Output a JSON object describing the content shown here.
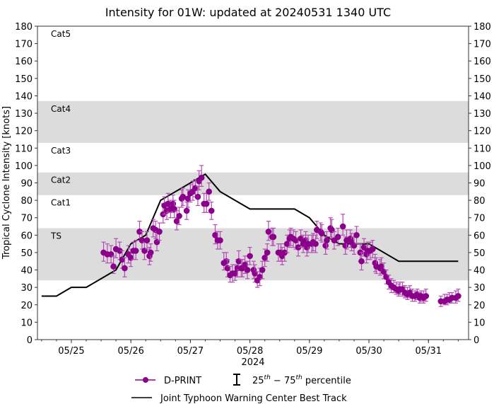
{
  "chart_data": {
    "type": "scatter",
    "title": "Intensity for 01W: updated at 20240531 1340 UTC",
    "ylabel": "Tropical Cyclone Intensity [knots]",
    "xlabel": "2024",
    "ylim": [
      0,
      180
    ],
    "xlim": [
      "2024-05-24T10:20",
      "2024-05-31T16:10"
    ],
    "yticks": [
      0,
      10,
      20,
      30,
      40,
      50,
      60,
      70,
      80,
      90,
      100,
      110,
      120,
      130,
      140,
      150,
      160,
      170,
      180
    ],
    "xticks": [
      {
        "date": "2024-05-25T00:00",
        "label": "05/25"
      },
      {
        "date": "2024-05-26T00:00",
        "label": "05/26"
      },
      {
        "date": "2024-05-27T00:00",
        "label": "05/27"
      },
      {
        "date": "2024-05-28T00:00",
        "label": "05/28"
      },
      {
        "date": "2024-05-29T00:00",
        "label": "05/29"
      },
      {
        "date": "2024-05-30T00:00",
        "label": "05/30"
      },
      {
        "date": "2024-05-31T00:00",
        "label": "05/31"
      }
    ],
    "grid": false,
    "bands": [
      {
        "label": "TS",
        "from": 34,
        "to": 64,
        "shaded": true
      },
      {
        "label": "Cat1",
        "from": 64,
        "to": 83,
        "shaded": false
      },
      {
        "label": "Cat2",
        "from": 83,
        "to": 96,
        "shaded": true
      },
      {
        "label": "Cat3",
        "from": 96,
        "to": 113,
        "shaded": false
      },
      {
        "label": "Cat4",
        "from": 113,
        "to": 137,
        "shaded": true
      },
      {
        "label": "Cat5",
        "from": 137,
        "to": 180,
        "shaded": false
      }
    ],
    "legend": {
      "placement": "bottom",
      "dprint": "D-PRINT",
      "percentile_pre": "25",
      "percentile_sup1": "th",
      "percentile_mid": " − 75",
      "percentile_sup2": "th",
      "percentile_post": " percentile",
      "besttrack": "Joint Typhoon Warning Center Best Track"
    },
    "colors": {
      "dprint": "#8b008b",
      "errorbar": "#b44bb4",
      "besttrack": "#000000",
      "band": "#dcdcdc"
    },
    "series": [
      {
        "name": "D-PRINT",
        "fields": [
          "time",
          "value",
          "p25",
          "p75"
        ],
        "points": [
          [
            "2024-05-25T13:00",
            50,
            45,
            56
          ],
          [
            "2024-05-25T14:30",
            49,
            44,
            55
          ],
          [
            "2024-05-25T16:00",
            49,
            44,
            54
          ],
          [
            "2024-05-25T17:00",
            42,
            38,
            48
          ],
          [
            "2024-05-25T18:00",
            52,
            47,
            58
          ],
          [
            "2024-05-25T19:30",
            51,
            46,
            56
          ],
          [
            "2024-05-25T20:30",
            46,
            41,
            51
          ],
          [
            "2024-05-25T21:30",
            41,
            36,
            47
          ],
          [
            "2024-05-25T23:00",
            49,
            44,
            54
          ],
          [
            "2024-05-26T00:00",
            47,
            42,
            52
          ],
          [
            "2024-05-26T01:00",
            51,
            46,
            56
          ],
          [
            "2024-05-26T02:00",
            51,
            46,
            57
          ],
          [
            "2024-05-26T03:30",
            62,
            57,
            68
          ],
          [
            "2024-05-26T04:30",
            57,
            52,
            62
          ],
          [
            "2024-05-26T05:30",
            51,
            46,
            56
          ],
          [
            "2024-05-26T06:30",
            57,
            52,
            62
          ],
          [
            "2024-05-26T07:30",
            48,
            43,
            53
          ],
          [
            "2024-05-26T08:00",
            50,
            45,
            55
          ],
          [
            "2024-05-26T09:00",
            64,
            59,
            69
          ],
          [
            "2024-05-26T10:00",
            63,
            58,
            68
          ],
          [
            "2024-05-26T10:30",
            56,
            51,
            62
          ],
          [
            "2024-05-26T11:30",
            62,
            57,
            67
          ],
          [
            "2024-05-26T13:00",
            72,
            67,
            78
          ],
          [
            "2024-05-26T13:30",
            77,
            72,
            82
          ],
          [
            "2024-05-26T14:30",
            74,
            69,
            79
          ],
          [
            "2024-05-26T15:00",
            78,
            73,
            84
          ],
          [
            "2024-05-26T16:00",
            75,
            70,
            80
          ],
          [
            "2024-05-26T17:00",
            78,
            73,
            83
          ],
          [
            "2024-05-26T17:30",
            75,
            70,
            80
          ],
          [
            "2024-05-26T18:30",
            68,
            63,
            74
          ],
          [
            "2024-05-26T19:30",
            71,
            66,
            76
          ],
          [
            "2024-05-26T20:30",
            81,
            76,
            86
          ],
          [
            "2024-05-26T21:00",
            82,
            77,
            87
          ],
          [
            "2024-05-26T22:30",
            74,
            69,
            79
          ],
          [
            "2024-05-26T23:00",
            81,
            76,
            86
          ],
          [
            "2024-05-27T00:00",
            84,
            79,
            89
          ],
          [
            "2024-05-27T01:00",
            85,
            80,
            91
          ],
          [
            "2024-05-27T02:00",
            87,
            82,
            92
          ],
          [
            "2024-05-27T03:00",
            82,
            77,
            88
          ],
          [
            "2024-05-27T03:30",
            91,
            86,
            97
          ],
          [
            "2024-05-27T04:30",
            93,
            88,
            100
          ],
          [
            "2024-05-27T05:30",
            78,
            73,
            84
          ],
          [
            "2024-05-27T06:30",
            78,
            73,
            84
          ],
          [
            "2024-05-27T07:30",
            85,
            80,
            90
          ],
          [
            "2024-05-27T08:30",
            74,
            69,
            79
          ],
          [
            "2024-05-27T10:00",
            60,
            55,
            66
          ],
          [
            "2024-05-27T11:00",
            57,
            52,
            62
          ],
          [
            "2024-05-27T12:00",
            57,
            52,
            62
          ],
          [
            "2024-05-27T13:30",
            44,
            40,
            50
          ],
          [
            "2024-05-27T14:30",
            45,
            40,
            50
          ],
          [
            "2024-05-27T15:00",
            41,
            36,
            46
          ],
          [
            "2024-05-27T16:00",
            37,
            33,
            42
          ],
          [
            "2024-05-27T17:00",
            38,
            33,
            43
          ],
          [
            "2024-05-27T18:00",
            38,
            34,
            43
          ],
          [
            "2024-05-27T19:00",
            41,
            36,
            46
          ],
          [
            "2024-05-27T19:30",
            45,
            40,
            51
          ],
          [
            "2024-05-27T20:30",
            41,
            36,
            46
          ],
          [
            "2024-05-27T21:00",
            41,
            36,
            46
          ],
          [
            "2024-05-27T22:00",
            43,
            38,
            48
          ],
          [
            "2024-05-27T23:00",
            40,
            35,
            45
          ],
          [
            "2024-05-28T00:00",
            48,
            43,
            53
          ],
          [
            "2024-05-28T01:30",
            40,
            35,
            45
          ],
          [
            "2024-05-28T02:00",
            38,
            33,
            43
          ],
          [
            "2024-05-28T03:00",
            34,
            30,
            39
          ],
          [
            "2024-05-28T04:00",
            36,
            31,
            41
          ],
          [
            "2024-05-28T05:00",
            40,
            35,
            45
          ],
          [
            "2024-05-28T06:00",
            47,
            42,
            52
          ],
          [
            "2024-05-28T07:00",
            50,
            45,
            55
          ],
          [
            "2024-05-28T07:30",
            62,
            57,
            68
          ],
          [
            "2024-05-28T09:00",
            59,
            54,
            64
          ],
          [
            "2024-05-28T09:30",
            59,
            54,
            64
          ],
          [
            "2024-05-28T11:30",
            50,
            45,
            55
          ],
          [
            "2024-05-28T12:30",
            50,
            45,
            55
          ],
          [
            "2024-05-28T13:00",
            48,
            43,
            53
          ],
          [
            "2024-05-28T14:00",
            50,
            45,
            55
          ],
          [
            "2024-05-28T15:00",
            55,
            50,
            60
          ],
          [
            "2024-05-28T16:00",
            58,
            53,
            63
          ],
          [
            "2024-05-28T16:30",
            59,
            54,
            64
          ],
          [
            "2024-05-28T17:30",
            58,
            53,
            63
          ],
          [
            "2024-05-28T18:30",
            57,
            52,
            62
          ],
          [
            "2024-05-28T19:30",
            53,
            48,
            58
          ],
          [
            "2024-05-28T20:30",
            58,
            53,
            63
          ],
          [
            "2024-05-28T21:30",
            55,
            50,
            60
          ],
          [
            "2024-05-28T22:30",
            57,
            52,
            62
          ],
          [
            "2024-05-28T23:00",
            53,
            48,
            58
          ],
          [
            "2024-05-28T23:30",
            55,
            50,
            60
          ],
          [
            "2024-05-29T01:00",
            55,
            50,
            60
          ],
          [
            "2024-05-29T01:30",
            56,
            51,
            61
          ],
          [
            "2024-05-29T02:30",
            55,
            50,
            60
          ],
          [
            "2024-05-29T03:00",
            63,
            58,
            68
          ],
          [
            "2024-05-29T04:30",
            62,
            57,
            67
          ],
          [
            "2024-05-29T05:00",
            61,
            56,
            66
          ],
          [
            "2024-05-29T06:30",
            54,
            49,
            59
          ],
          [
            "2024-05-29T07:00",
            57,
            52,
            62
          ],
          [
            "2024-05-29T08:30",
            64,
            59,
            70
          ],
          [
            "2024-05-29T09:00",
            63,
            58,
            69
          ],
          [
            "2024-05-29T10:00",
            57,
            52,
            62
          ],
          [
            "2024-05-29T11:30",
            59,
            54,
            64
          ],
          [
            "2024-05-29T13:30",
            65,
            60,
            72
          ],
          [
            "2024-05-29T14:30",
            54,
            49,
            59
          ],
          [
            "2024-05-29T15:00",
            57,
            52,
            63
          ],
          [
            "2024-05-29T16:30",
            58,
            53,
            63
          ],
          [
            "2024-05-29T17:00",
            56,
            51,
            61
          ],
          [
            "2024-05-29T18:00",
            54,
            49,
            59
          ],
          [
            "2024-05-29T19:00",
            60,
            55,
            65
          ],
          [
            "2024-05-29T20:30",
            50,
            45,
            55
          ],
          [
            "2024-05-29T21:00",
            45,
            40,
            50
          ],
          [
            "2024-05-29T22:00",
            53,
            48,
            58
          ],
          [
            "2024-05-29T23:00",
            49,
            44,
            54
          ],
          [
            "2024-05-29T23:30",
            51,
            46,
            56
          ],
          [
            "2024-05-30T00:30",
            51,
            46,
            56
          ],
          [
            "2024-05-30T01:30",
            52,
            47,
            57
          ],
          [
            "2024-05-30T02:30",
            44,
            39,
            49
          ],
          [
            "2024-05-30T03:00",
            42,
            38,
            47
          ],
          [
            "2024-05-30T04:30",
            41,
            37,
            46
          ],
          [
            "2024-05-30T05:00",
            42,
            38,
            47
          ],
          [
            "2024-05-30T06:00",
            39,
            35,
            44
          ],
          [
            "2024-05-30T07:00",
            36,
            32,
            40
          ],
          [
            "2024-05-30T08:00",
            33,
            29,
            37
          ],
          [
            "2024-05-30T09:00",
            31,
            27,
            35
          ],
          [
            "2024-05-30T10:00",
            30,
            27,
            34
          ],
          [
            "2024-05-30T11:00",
            29,
            26,
            33
          ],
          [
            "2024-05-30T12:00",
            28,
            25,
            32
          ],
          [
            "2024-05-30T12:30",
            29,
            26,
            33
          ],
          [
            "2024-05-30T13:30",
            29,
            25,
            33
          ],
          [
            "2024-05-30T14:30",
            27,
            24,
            31
          ],
          [
            "2024-05-30T15:30",
            26,
            23,
            30
          ],
          [
            "2024-05-30T16:30",
            27,
            24,
            31
          ],
          [
            "2024-05-30T17:30",
            25,
            22,
            29
          ],
          [
            "2024-05-30T18:30",
            25,
            22,
            28
          ],
          [
            "2024-05-30T19:30",
            26,
            23,
            29
          ],
          [
            "2024-05-30T20:30",
            24,
            21,
            27
          ],
          [
            "2024-05-30T21:00",
            25,
            22,
            28
          ],
          [
            "2024-05-30T22:00",
            24,
            21,
            28
          ],
          [
            "2024-05-30T23:00",
            25,
            22,
            29
          ],
          [
            "2024-05-31T05:00",
            22,
            19,
            25
          ],
          [
            "2024-05-31T06:30",
            22,
            20,
            26
          ],
          [
            "2024-05-31T07:30",
            23,
            20,
            26
          ],
          [
            "2024-05-31T08:30",
            23,
            21,
            27
          ],
          [
            "2024-05-31T09:30",
            24,
            21,
            27
          ],
          [
            "2024-05-31T11:00",
            24,
            21,
            28
          ],
          [
            "2024-05-31T12:00",
            25,
            22,
            29
          ]
        ]
      },
      {
        "name": "Joint Typhoon Warning Center Best Track",
        "fields": [
          "time",
          "value"
        ],
        "points": [
          [
            "2024-05-24T12:00",
            25
          ],
          [
            "2024-05-24T18:00",
            25
          ],
          [
            "2024-05-25T00:00",
            30
          ],
          [
            "2024-05-25T06:00",
            30
          ],
          [
            "2024-05-25T12:00",
            35
          ],
          [
            "2024-05-25T18:00",
            40
          ],
          [
            "2024-05-26T00:00",
            55
          ],
          [
            "2024-05-26T06:00",
            60
          ],
          [
            "2024-05-26T12:00",
            80
          ],
          [
            "2024-05-26T18:00",
            85
          ],
          [
            "2024-05-27T00:00",
            90
          ],
          [
            "2024-05-27T06:00",
            95
          ],
          [
            "2024-05-27T12:00",
            85
          ],
          [
            "2024-05-27T18:00",
            80
          ],
          [
            "2024-05-28T00:00",
            75
          ],
          [
            "2024-05-28T06:00",
            75
          ],
          [
            "2024-05-28T12:00",
            75
          ],
          [
            "2024-05-28T18:00",
            75
          ],
          [
            "2024-05-29T00:00",
            70
          ],
          [
            "2024-05-29T06:00",
            60
          ],
          [
            "2024-05-29T12:00",
            55
          ],
          [
            "2024-05-29T18:00",
            55
          ],
          [
            "2024-05-30T00:00",
            55
          ],
          [
            "2024-05-30T06:00",
            50
          ],
          [
            "2024-05-30T12:00",
            45
          ],
          [
            "2024-05-30T18:00",
            45
          ],
          [
            "2024-05-31T00:00",
            45
          ],
          [
            "2024-05-31T06:00",
            45
          ],
          [
            "2024-05-31T12:00",
            45
          ]
        ]
      }
    ]
  }
}
